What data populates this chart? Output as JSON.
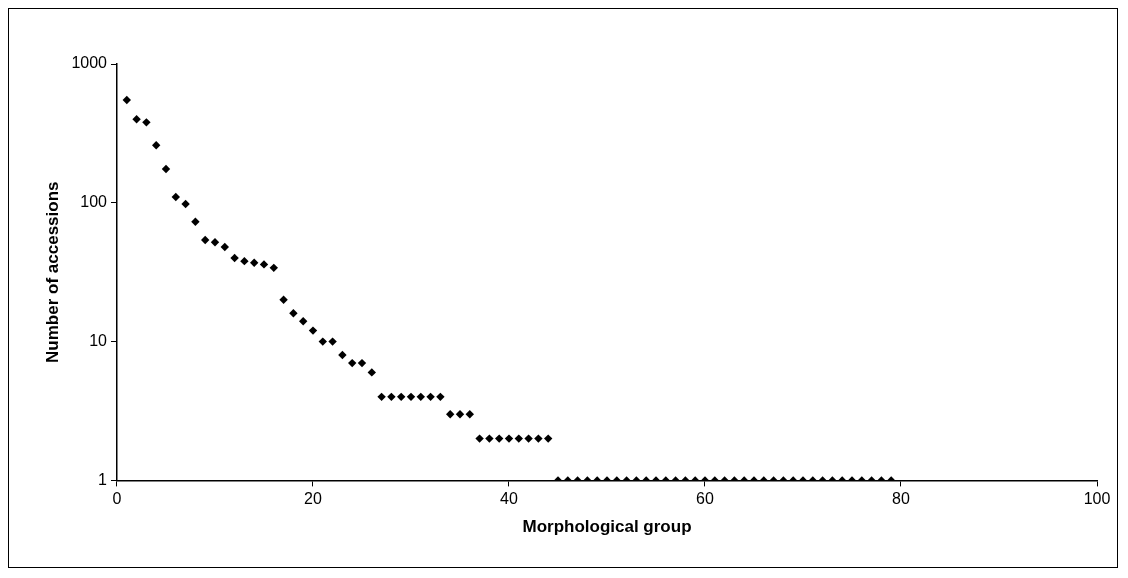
{
  "chart_data": {
    "type": "scatter",
    "xlabel": "Morphological group",
    "ylabel": "Number of accessions",
    "log": "y",
    "grid": false,
    "legend": false,
    "marker": "diamond",
    "xlim": [
      0,
      100
    ],
    "xticks": [
      0,
      20,
      40,
      60,
      80,
      100
    ],
    "ylim": [
      1,
      1000
    ],
    "yticks": [
      1,
      10,
      100,
      1000
    ],
    "series": [
      {
        "color": "#000000",
        "x": [
          1,
          2,
          3,
          4,
          5,
          6,
          7,
          8,
          9,
          10,
          11,
          12,
          13,
          14,
          15,
          16,
          17,
          18,
          19,
          20,
          21,
          22,
          23,
          24,
          25,
          26,
          27,
          28,
          29,
          30,
          31,
          32,
          33,
          34,
          35,
          36,
          37,
          38,
          39,
          40,
          41,
          42,
          43,
          44,
          45,
          46,
          47,
          48,
          49,
          50,
          51,
          52,
          53,
          54,
          55,
          56,
          57,
          58,
          59,
          60,
          61,
          62,
          63,
          64,
          65,
          66,
          67,
          68,
          69,
          70,
          71,
          72,
          73,
          74,
          75,
          76,
          77,
          78,
          79
        ],
        "values": [
          550,
          400,
          380,
          260,
          175,
          110,
          98,
          73,
          54,
          52,
          48,
          40,
          38,
          37,
          36,
          34,
          20,
          16,
          14,
          12,
          10,
          10,
          8,
          7,
          7,
          6,
          4,
          4,
          4,
          4,
          4,
          4,
          4,
          3,
          3,
          3,
          2,
          2,
          2,
          2,
          2,
          2,
          2,
          2,
          1,
          1,
          1,
          1,
          1,
          1,
          1,
          1,
          1,
          1,
          1,
          1,
          1,
          1,
          1,
          1,
          1,
          1,
          1,
          1,
          1,
          1,
          1,
          1,
          1,
          1,
          1,
          1,
          1,
          1,
          1,
          1,
          1,
          1,
          1
        ]
      }
    ]
  }
}
